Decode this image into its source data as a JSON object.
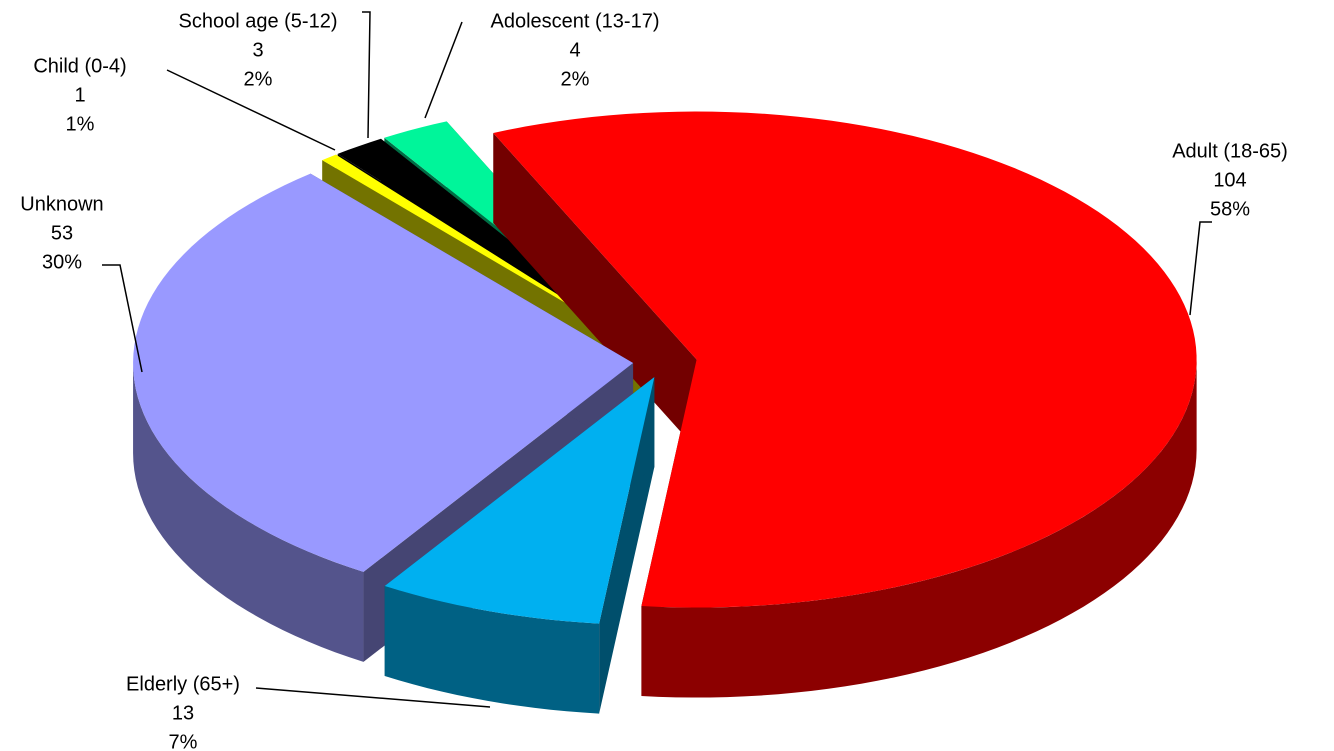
{
  "chart_data": {
    "type": "pie",
    "style": "3d-exploded",
    "categories": [
      "Adult (18-65)",
      "Elderly (65+)",
      "Unknown",
      "Child (0-4)",
      "School age (5-12)",
      "Adolescent (13-17)"
    ],
    "values": [
      104,
      13,
      53,
      1,
      3,
      4
    ],
    "percent_labels": [
      "58%",
      "7%",
      "30%",
      "1%",
      "2%",
      "2%"
    ],
    "colors": [
      "#ff0000",
      "#00b0f0",
      "#9999ff",
      "#ffff00",
      "#000000",
      "#00f59a"
    ]
  }
}
